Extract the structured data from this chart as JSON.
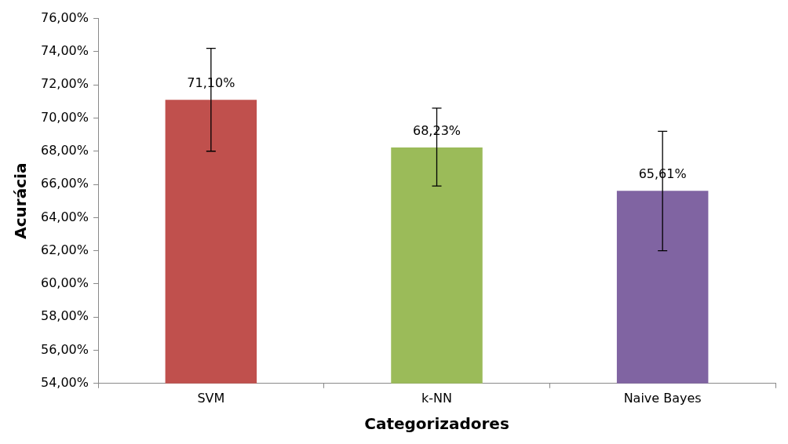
{
  "chart_data": {
    "type": "bar",
    "xlabel": "Categorizadores",
    "ylabel": "Acurácia",
    "categories": [
      "SVM",
      "k-NN",
      "Naive Bayes"
    ],
    "values": [
      71.1,
      68.23,
      65.61
    ],
    "colors": [
      "#c0504d",
      "#9bbb59",
      "#8064a2"
    ],
    "errors": [
      [
        68.0,
        74.2
      ],
      [
        65.9,
        70.6
      ],
      [
        62.0,
        69.2
      ]
    ],
    "value_labels": [
      "71,10%",
      "68,23%",
      "65,61%"
    ],
    "ylim": [
      54,
      76
    ],
    "yticks": [
      {
        "value": 54,
        "label": "54,00%"
      },
      {
        "value": 56,
        "label": "56,00%"
      },
      {
        "value": 58,
        "label": "58,00%"
      },
      {
        "value": 60,
        "label": "60,00%"
      },
      {
        "value": 62,
        "label": "62,00%"
      },
      {
        "value": 64,
        "label": "64,00%"
      },
      {
        "value": 66,
        "label": "66,00%"
      },
      {
        "value": 68,
        "label": "68,00%"
      },
      {
        "value": 70,
        "label": "70,00%"
      },
      {
        "value": 72,
        "label": "72,00%"
      },
      {
        "value": 74,
        "label": "74,00%"
      },
      {
        "value": 76,
        "label": "76,00%"
      }
    ],
    "grid": false,
    "legend": false
  }
}
